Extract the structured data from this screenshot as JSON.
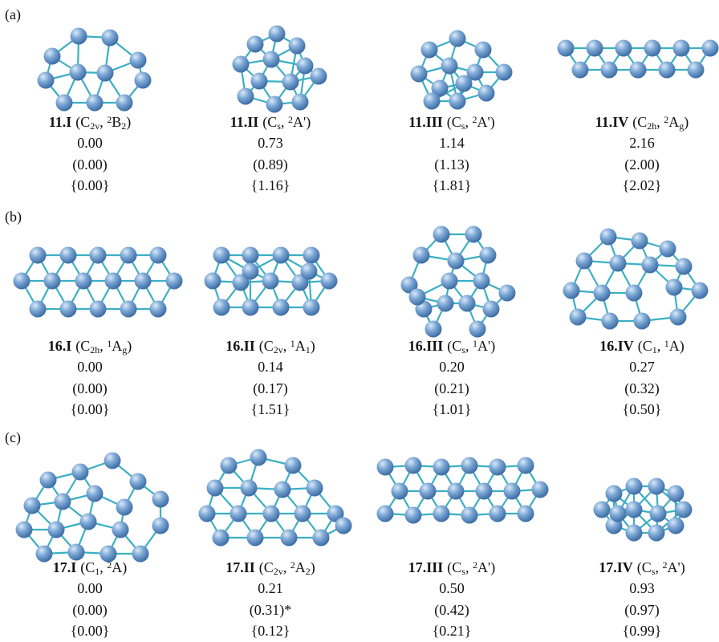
{
  "panels": [
    {
      "label": "(a)",
      "structures": [
        {
          "parts": [
            "11.I",
            "(C",
            "2v",
            ", ",
            "2",
            "B",
            "2",
            ")"
          ],
          "energies": [
            "0.00",
            "(0.00)",
            "{0.00}"
          ]
        },
        {
          "parts": [
            "11.II",
            "(C",
            "s",
            ", ",
            "2",
            "A')"
          ],
          "energies": [
            "0.73",
            "(0.89)",
            "{1.16}"
          ]
        },
        {
          "parts": [
            "11.III",
            "(C",
            "s",
            ", ",
            "2",
            "A')"
          ],
          "energies": [
            "1.14",
            "(1.13)",
            "{1.81}"
          ]
        },
        {
          "parts": [
            "11.IV",
            "(C",
            "2h",
            ", ",
            "2",
            "A",
            "g",
            ")"
          ],
          "energies": [
            "2.16",
            "(2.00)",
            "{2.02}"
          ]
        }
      ]
    },
    {
      "label": "(b)",
      "structures": [
        {
          "parts": [
            "16.I",
            "(C",
            "2h",
            ", ",
            "1",
            "A",
            "g",
            ")"
          ],
          "energies": [
            "0.00",
            "(0.00)",
            "{0.00}"
          ]
        },
        {
          "parts": [
            "16.II",
            "(C",
            "2v",
            ", ",
            "1",
            "A",
            "1",
            ")"
          ],
          "energies": [
            "0.14",
            "(0.17)",
            "{1.51}"
          ]
        },
        {
          "parts": [
            "16.III",
            "(C",
            "s",
            ", ",
            "1",
            "A')"
          ],
          "energies": [
            "0.20",
            "(0.21)",
            "{1.01}"
          ]
        },
        {
          "parts": [
            "16.IV",
            "(C",
            "1",
            ", ",
            "1",
            "A)"
          ],
          "energies": [
            "0.27",
            "(0.32)",
            "{0.50}"
          ]
        }
      ]
    },
    {
      "label": "(c)",
      "structures": [
        {
          "parts": [
            "17.I",
            "(C",
            "1",
            ", ",
            "2",
            "A)"
          ],
          "energies": [
            "0.00",
            "(0.00)",
            "{0.00}"
          ]
        },
        {
          "parts": [
            "17.II",
            "(C",
            "2v",
            ", ",
            "2",
            "A",
            "2",
            ")"
          ],
          "energies": [
            "0.21",
            "(0.31)*",
            "{0.12}"
          ]
        },
        {
          "parts": [
            "17.III",
            "(C",
            "s",
            ", ",
            "2",
            "A')"
          ],
          "energies": [
            "0.50",
            "(0.42)",
            "{0.21}"
          ]
        },
        {
          "parts": [
            "17.IV",
            "(C",
            "s",
            ", ",
            "2",
            "A')"
          ],
          "energies": [
            "0.93",
            "(0.97)",
            "{0.99}"
          ]
        }
      ]
    }
  ]
}
